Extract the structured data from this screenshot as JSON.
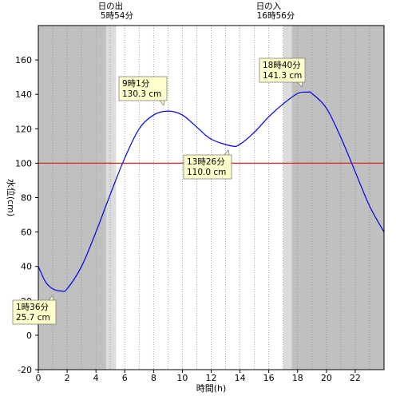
{
  "chart_data": {
    "type": "line",
    "xlabel": "時間(h)",
    "ylabel": "水位(cm)",
    "xlim": [
      0,
      24
    ],
    "ylim": [
      -20,
      180
    ],
    "x_ticks": [
      0,
      2,
      4,
      6,
      8,
      10,
      12,
      14,
      16,
      18,
      20,
      22
    ],
    "y_ticks": [
      -20,
      0,
      20,
      40,
      60,
      80,
      100,
      120,
      140,
      160
    ],
    "x_tick_labels": [
      "0",
      "2",
      "4",
      "6",
      "8",
      "10",
      "12",
      "14",
      "16",
      "18",
      "20",
      "22"
    ],
    "y_tick_labels": [
      "-20",
      "0",
      "20",
      "40",
      "60",
      "80",
      "100",
      "120",
      "140",
      "160"
    ],
    "grid": "vertical dotted every hour",
    "sunrise": {
      "title": "日の出",
      "time": "5時54分",
      "hour": 5.9
    },
    "sunset": {
      "title": "日の入",
      "time": "16時56分",
      "hour": 16.93
    },
    "twilight": {
      "morning": [
        4.7,
        5.4
      ],
      "evening": [
        17.0,
        17.6
      ]
    },
    "reference_line": {
      "value": 100,
      "color": "#dd2222"
    },
    "series": [
      {
        "color": "#0000ee",
        "x": [
          0,
          0.5,
          1,
          1.6,
          2,
          3,
          4,
          5,
          6,
          7,
          8,
          9.02,
          10,
          11,
          12,
          13.43,
          14,
          15,
          16,
          17,
          18,
          18.67,
          19,
          20,
          21,
          22,
          23,
          24
        ],
        "y": [
          40,
          31,
          27,
          25.7,
          27,
          40,
          60,
          82,
          103,
          120,
          128,
          130.3,
          128,
          121,
          114,
          110.0,
          111,
          118,
          127,
          134.5,
          140.5,
          141.3,
          140.5,
          132,
          115,
          95,
          75,
          60
        ]
      }
    ],
    "annotations": [
      {
        "time": "1時36分",
        "value": "25.7 cm",
        "x": 1.6,
        "y": 25.7
      },
      {
        "time": "9時1分",
        "value": "130.3 cm",
        "x": 9.02,
        "y": 130.3
      },
      {
        "time": "13時26分",
        "value": "110.0 cm",
        "x": 13.43,
        "y": 110.0
      },
      {
        "time": "18時40分",
        "value": "141.3 cm",
        "x": 18.67,
        "y": 141.3
      }
    ],
    "colors": {
      "night": "#c0c0c0",
      "twilight": "#dcdcdc",
      "day": "#ffffff",
      "annotation_bg": "#ffffcc",
      "annotation_border": "#808080"
    }
  }
}
